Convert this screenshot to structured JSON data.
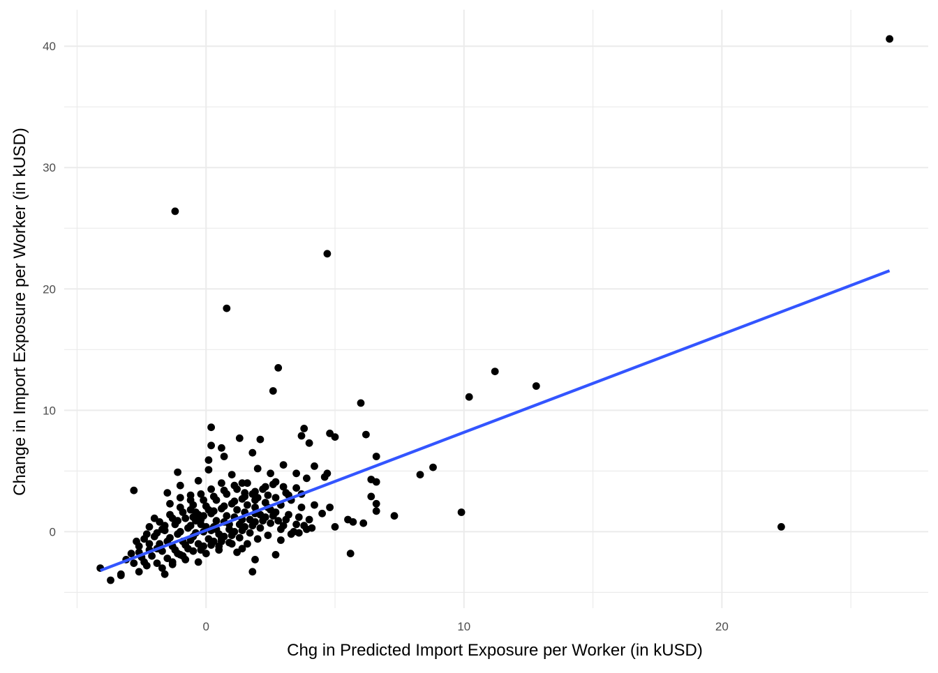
{
  "chart_data": {
    "type": "scatter",
    "xlabel": "Chg in Predicted Import Exposure per Worker (in kUSD)",
    "ylabel": "Change in Import Exposure per Worker (in kUSD)",
    "xlim": [
      -5.5,
      28
    ],
    "ylim": [
      -6.3,
      43
    ],
    "x_ticks": [
      0,
      10,
      20
    ],
    "y_ticks": [
      0,
      10,
      20,
      30,
      40
    ],
    "grid": true,
    "point_color": "#000000",
    "fit_line": {
      "color": "#3355ff",
      "x": [
        -4.1,
        26.5
      ],
      "y": [
        -3.2,
        21.5
      ]
    },
    "series": [
      {
        "points": [
          [
            26.5,
            40.6
          ],
          [
            22.3,
            0.4
          ],
          [
            -1.2,
            26.4
          ],
          [
            4.7,
            22.9
          ],
          [
            0.8,
            18.4
          ],
          [
            2.8,
            13.5
          ],
          [
            11.2,
            13.2
          ],
          [
            12.8,
            12.0
          ],
          [
            2.6,
            11.6
          ],
          [
            10.2,
            11.1
          ],
          [
            6.0,
            10.6
          ],
          [
            0.2,
            8.6
          ],
          [
            3.8,
            8.5
          ],
          [
            4.8,
            8.1
          ],
          [
            5.0,
            7.8
          ],
          [
            6.2,
            8.0
          ],
          [
            3.7,
            7.9
          ],
          [
            4.0,
            7.3
          ],
          [
            1.3,
            7.7
          ],
          [
            2.1,
            7.6
          ],
          [
            0.2,
            7.1
          ],
          [
            0.6,
            6.9
          ],
          [
            0.7,
            6.2
          ],
          [
            6.6,
            6.2
          ],
          [
            8.8,
            5.3
          ],
          [
            8.3,
            4.7
          ],
          [
            6.4,
            4.3
          ],
          [
            6.6,
            4.1
          ],
          [
            4.6,
            4.5
          ],
          [
            4.7,
            4.8
          ],
          [
            9.9,
            1.6
          ],
          [
            7.3,
            1.3
          ],
          [
            6.6,
            1.7
          ],
          [
            6.6,
            2.3
          ],
          [
            6.4,
            2.9
          ],
          [
            5.7,
            0.8
          ],
          [
            5.5,
            1.0
          ],
          [
            6.1,
            0.7
          ],
          [
            5.0,
            0.4
          ],
          [
            5.6,
            -1.8
          ],
          [
            -2.8,
            3.4
          ],
          [
            -1.1,
            4.9
          ],
          [
            -1.0,
            3.8
          ],
          [
            0.1,
            5.9
          ],
          [
            0.1,
            5.1
          ],
          [
            1.0,
            4.7
          ],
          [
            1.4,
            4.0
          ],
          [
            2.0,
            5.2
          ],
          [
            2.5,
            4.8
          ],
          [
            3.0,
            5.5
          ],
          [
            3.5,
            4.8
          ],
          [
            4.2,
            5.4
          ],
          [
            3.9,
            4.4
          ],
          [
            3.0,
            3.7
          ],
          [
            3.2,
            3.0
          ],
          [
            3.7,
            3.1
          ],
          [
            4.2,
            2.2
          ],
          [
            4.5,
            1.5
          ],
          [
            4.0,
            1.0
          ],
          [
            4.8,
            2.0
          ],
          [
            1.8,
            6.5
          ],
          [
            -0.3,
            4.2
          ],
          [
            -0.6,
            3.0
          ],
          [
            -1.5,
            3.2
          ],
          [
            -2.0,
            1.1
          ],
          [
            -2.2,
            0.4
          ],
          [
            -2.4,
            -0.6
          ],
          [
            -2.6,
            -1.2
          ],
          [
            -2.9,
            -1.8
          ],
          [
            -3.1,
            -2.3
          ],
          [
            -3.3,
            -3.5
          ],
          [
            -3.3,
            -3.6
          ],
          [
            -3.7,
            -4.0
          ],
          [
            -4.1,
            -3.0
          ],
          [
            -2.6,
            -3.3
          ],
          [
            -2.3,
            -2.8
          ],
          [
            -1.6,
            -3.5
          ],
          [
            -1.3,
            -2.7
          ],
          [
            -0.8,
            -2.3
          ],
          [
            -0.3,
            -2.5
          ],
          [
            0.0,
            -1.8
          ],
          [
            0.5,
            -1.5
          ],
          [
            1.2,
            -1.7
          ],
          [
            1.9,
            -2.3
          ],
          [
            1.8,
            -3.3
          ],
          [
            2.7,
            -1.9
          ],
          [
            -2.4,
            -2.5
          ],
          [
            -1.9,
            -1.4
          ],
          [
            -1.5,
            -0.8
          ],
          [
            -1.1,
            -0.2
          ],
          [
            -0.7,
            0.3
          ],
          [
            -0.4,
            0.9
          ],
          [
            -0.1,
            1.3
          ],
          [
            0.3,
            1.7
          ],
          [
            0.7,
            2.1
          ],
          [
            1.1,
            2.5
          ],
          [
            1.5,
            2.9
          ],
          [
            1.9,
            3.3
          ],
          [
            2.3,
            3.7
          ],
          [
            2.7,
            4.1
          ],
          [
            -1.8,
            0.8
          ],
          [
            -1.4,
            1.4
          ],
          [
            -1.0,
            2.0
          ],
          [
            -0.6,
            2.6
          ],
          [
            -0.2,
            3.1
          ],
          [
            0.2,
            3.5
          ],
          [
            0.6,
            4.0
          ],
          [
            -2.0,
            -0.4
          ],
          [
            -1.6,
            0.1
          ],
          [
            -1.2,
            0.6
          ],
          [
            -0.8,
            1.1
          ],
          [
            -0.4,
            1.6
          ],
          [
            0.0,
            2.1
          ],
          [
            0.4,
            2.6
          ],
          [
            0.8,
            3.1
          ],
          [
            1.2,
            3.5
          ],
          [
            1.6,
            4.0
          ],
          [
            -2.2,
            -1.5
          ],
          [
            -1.8,
            -1.0
          ],
          [
            -1.4,
            -0.5
          ],
          [
            -1.0,
            0.0
          ],
          [
            -0.6,
            0.5
          ],
          [
            -0.2,
            1.0
          ],
          [
            0.2,
            1.5
          ],
          [
            0.6,
            1.9
          ],
          [
            1.0,
            2.3
          ],
          [
            1.4,
            2.7
          ],
          [
            1.8,
            3.1
          ],
          [
            2.2,
            3.5
          ],
          [
            2.6,
            3.9
          ],
          [
            -2.1,
            -2.0
          ],
          [
            -1.7,
            -1.6
          ],
          [
            -1.3,
            -1.2
          ],
          [
            -0.9,
            -0.8
          ],
          [
            -0.5,
            -0.4
          ],
          [
            -0.1,
            0.0
          ],
          [
            0.3,
            0.4
          ],
          [
            0.7,
            0.8
          ],
          [
            1.1,
            1.2
          ],
          [
            1.5,
            1.6
          ],
          [
            1.9,
            2.0
          ],
          [
            2.3,
            2.4
          ],
          [
            2.7,
            2.8
          ],
          [
            3.1,
            3.2
          ],
          [
            3.5,
            3.6
          ],
          [
            -1.9,
            -2.6
          ],
          [
            -1.5,
            -2.2
          ],
          [
            -1.1,
            -1.8
          ],
          [
            -0.7,
            -1.4
          ],
          [
            -0.3,
            -1.0
          ],
          [
            0.1,
            -0.6
          ],
          [
            0.5,
            -0.2
          ],
          [
            0.9,
            0.2
          ],
          [
            1.3,
            0.6
          ],
          [
            1.7,
            1.0
          ],
          [
            2.1,
            1.4
          ],
          [
            2.5,
            1.8
          ],
          [
            2.9,
            2.2
          ],
          [
            3.3,
            2.6
          ],
          [
            3.7,
            2.0
          ],
          [
            -1.7,
            -3.0
          ],
          [
            -1.3,
            -2.5
          ],
          [
            -0.9,
            -2.0
          ],
          [
            -0.5,
            -1.6
          ],
          [
            -0.1,
            -1.2
          ],
          [
            0.3,
            -0.8
          ],
          [
            0.7,
            -0.4
          ],
          [
            1.1,
            0.0
          ],
          [
            1.5,
            0.4
          ],
          [
            1.9,
            0.8
          ],
          [
            2.3,
            1.2
          ],
          [
            2.7,
            1.6
          ],
          [
            3.1,
            1.0
          ],
          [
            3.5,
            0.6
          ],
          [
            3.9,
            0.2
          ],
          [
            0.5,
            -1.2
          ],
          [
            0.9,
            -0.9
          ],
          [
            1.3,
            -0.5
          ],
          [
            1.7,
            -0.1
          ],
          [
            2.1,
            0.3
          ],
          [
            2.5,
            0.7
          ],
          [
            2.9,
            0.2
          ],
          [
            3.3,
            -0.2
          ],
          [
            1.6,
            -1.0
          ],
          [
            2.0,
            -0.6
          ],
          [
            2.4,
            -0.3
          ],
          [
            2.8,
            0.9
          ],
          [
            3.2,
            1.4
          ],
          [
            3.6,
            1.2
          ],
          [
            4.1,
            0.3
          ],
          [
            -2.6,
            -1.7
          ],
          [
            -2.8,
            -2.6
          ],
          [
            -2.5,
            -2.1
          ],
          [
            -2.2,
            -1.0
          ],
          [
            -1.9,
            -0.1
          ],
          [
            -1.6,
            0.5
          ],
          [
            -1.3,
            1.1
          ],
          [
            -0.9,
            1.6
          ],
          [
            -0.5,
            2.2
          ],
          [
            -0.1,
            2.6
          ],
          [
            0.3,
            2.9
          ],
          [
            0.7,
            3.4
          ],
          [
            1.1,
            3.8
          ],
          [
            1.5,
            3.2
          ],
          [
            1.9,
            2.6
          ],
          [
            -1.4,
            2.3
          ],
          [
            -1.0,
            2.8
          ],
          [
            -0.6,
            1.8
          ],
          [
            -0.2,
            0.6
          ],
          [
            0.2,
            0.1
          ],
          [
            0.6,
            -0.6
          ],
          [
            1.0,
            -1.0
          ],
          [
            1.4,
            -1.4
          ],
          [
            -0.8,
            -1.1
          ],
          [
            -1.2,
            -1.5
          ],
          [
            -0.4,
            -0.1
          ],
          [
            0.0,
            0.4
          ],
          [
            0.4,
            0.9
          ],
          [
            0.8,
            1.3
          ],
          [
            1.2,
            1.8
          ],
          [
            1.6,
            2.2
          ],
          [
            2.0,
            2.8
          ],
          [
            2.4,
            3.0
          ],
          [
            -0.3,
            1.4
          ],
          [
            0.1,
            1.8
          ],
          [
            -2.7,
            -0.8
          ],
          [
            -2.3,
            -0.2
          ],
          [
            -1.7,
            0.2
          ],
          [
            -1.1,
            0.9
          ],
          [
            -0.5,
            1.2
          ],
          [
            0.4,
            0.2
          ],
          [
            0.9,
            0.6
          ],
          [
            1.4,
            1.0
          ],
          [
            1.9,
            1.5
          ],
          [
            2.4,
            2.0
          ],
          [
            -0.6,
            -0.7
          ],
          [
            -1.0,
            -1.9
          ],
          [
            -0.2,
            -1.5
          ],
          [
            0.2,
            -1.1
          ],
          [
            0.6,
            -0.8
          ],
          [
            1.0,
            -0.3
          ],
          [
            1.4,
            0.1
          ],
          [
            1.8,
            0.5
          ],
          [
            2.2,
            0.9
          ],
          [
            2.6,
            1.3
          ],
          [
            3.0,
            0.5
          ],
          [
            3.4,
            0.0
          ],
          [
            3.8,
            0.5
          ],
          [
            3.6,
            -0.1
          ],
          [
            2.9,
            -0.7
          ]
        ]
      }
    ]
  }
}
